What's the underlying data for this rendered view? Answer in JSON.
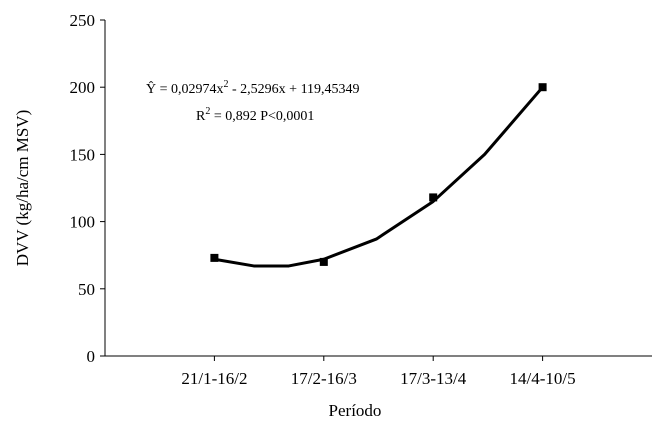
{
  "chart_data": {
    "type": "line",
    "y_label": "DVV (kg/ha/cm MSV)",
    "x_label": "Período",
    "categories": [
      "21/1-16/2",
      "17/2-16/3",
      "17/3-13/4",
      "14/4-10/5"
    ],
    "x": [
      1,
      2,
      3,
      4
    ],
    "values": [
      73,
      70,
      118,
      200
    ],
    "color": "#000000",
    "xlim": [
      0,
      5
    ],
    "ylim": [
      0,
      250
    ],
    "yticks": [
      0,
      50,
      100,
      150,
      200,
      250
    ],
    "fit": {
      "x": [
        1,
        1.36,
        1.68,
        2,
        2.48,
        3,
        3.47,
        4
      ],
      "values": [
        72,
        67,
        67,
        72,
        87,
        115,
        150,
        200
      ]
    },
    "equation": {
      "lead": "Ŷ = 0,02974x",
      "sup": "2",
      "rest": " - 2,5296x + 119,45349"
    },
    "r2": {
      "lead": "R",
      "sup": "2",
      "rest": " = 0,892  P<0,0001"
    }
  }
}
